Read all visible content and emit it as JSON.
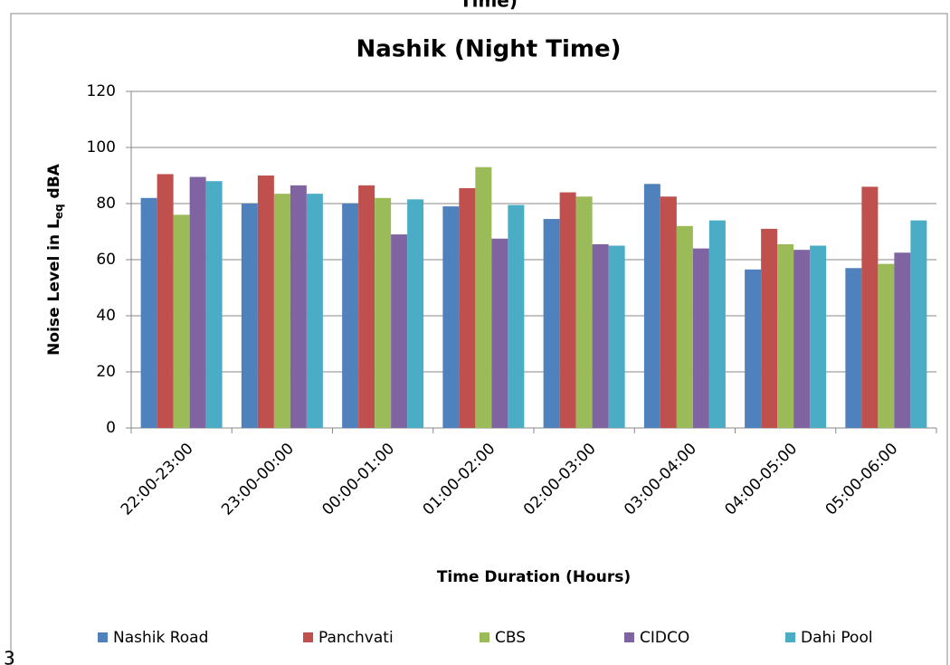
{
  "page_fragments": {
    "top": "Time)",
    "bottom_left": "3"
  },
  "chart_data": {
    "type": "bar",
    "title": "Nashik (Night Time)",
    "xlabel": "Time Duration (Hours)",
    "ylabel": {
      "text": "Noise Level in L",
      "subscript": "eq",
      "suffix": " dBA"
    },
    "categories": [
      "22:00-23:00",
      "23:00-00:00",
      "00:00-01:00",
      "01:00-02:00",
      "02:00-03:00",
      "03:00-04:00",
      "04:00-05:00",
      "05:00-06:00"
    ],
    "series": [
      {
        "name": "Nashik Road",
        "color": "#4f81bd",
        "values": [
          82,
          80,
          80,
          79,
          74.5,
          87,
          56.5,
          57
        ]
      },
      {
        "name": "Panchvati",
        "color": "#c0504d",
        "values": [
          90.5,
          90,
          86.5,
          85.5,
          84,
          82.5,
          71,
          86
        ]
      },
      {
        "name": "CBS",
        "color": "#9bbb59",
        "values": [
          76,
          83.5,
          82,
          93,
          82.5,
          72,
          65.5,
          58.5
        ]
      },
      {
        "name": "CIDCO",
        "color": "#8064a2",
        "values": [
          89.5,
          86.5,
          69,
          67.5,
          65.5,
          64,
          63.5,
          62.5
        ]
      },
      {
        "name": "Dahi Pool",
        "color": "#4bacc6",
        "values": [
          88,
          83.5,
          81.5,
          79.5,
          65,
          74,
          65,
          74
        ]
      }
    ],
    "ylim": [
      0,
      120
    ],
    "yticks": [
      0,
      20,
      40,
      60,
      80,
      100,
      120
    ],
    "grid": true,
    "legend": "bottom"
  }
}
